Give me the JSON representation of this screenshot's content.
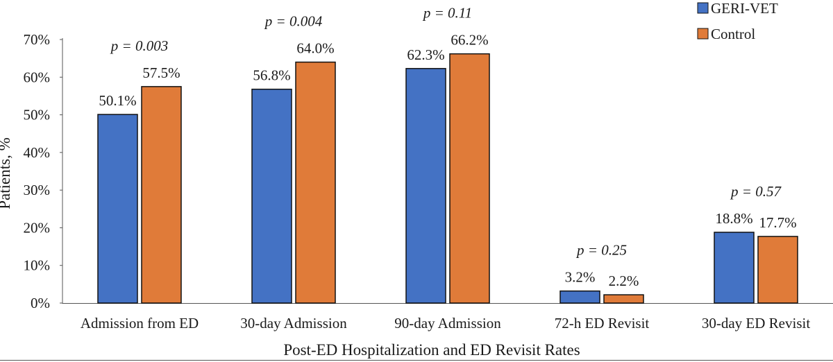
{
  "chart_data": {
    "type": "bar",
    "title": "",
    "xlabel": "Post-ED Hospitalization and ED Revisit Rates",
    "ylabel": "Patients, %",
    "ylim": [
      0,
      70
    ],
    "yticks": [
      "0%",
      "10%",
      "20%",
      "30%",
      "40%",
      "50%",
      "60%",
      "70%"
    ],
    "categories": [
      "Admission from ED",
      "30-day Admission",
      "90-day Admission",
      "72-h ED Revisit",
      "30-day ED Revisit"
    ],
    "series": [
      {
        "name": "GERI-VET",
        "color": "#4472C4",
        "values": [
          50.1,
          56.8,
          62.3,
          3.2,
          18.8
        ],
        "labels": [
          "50.1%",
          "56.8%",
          "62.3%",
          "3.2%",
          "18.8%"
        ]
      },
      {
        "name": "Control",
        "color": "#E07B39",
        "values": [
          57.5,
          64.0,
          66.2,
          2.2,
          17.7
        ],
        "labels": [
          "57.5%",
          "64.0%",
          "66.2%",
          "2.2%",
          "17.7%"
        ]
      }
    ],
    "p_values": [
      "p = 0.003",
      "p = 0.004",
      "p = 0.11",
      "p = 0.25",
      "p = 0.57"
    ],
    "legend": [
      "GERI-VET",
      "Control"
    ],
    "grid": false,
    "legend_position": "top-right"
  }
}
